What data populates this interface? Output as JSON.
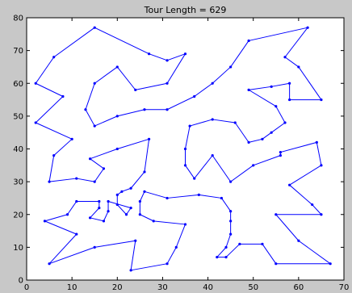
{
  "chart_data": {
    "type": "line",
    "title": "Tour Length = 629",
    "xlabel": "",
    "ylabel": "",
    "xlim": [
      0,
      70
    ],
    "ylim": [
      0,
      80
    ],
    "x_ticks": [
      0,
      10,
      20,
      30,
      40,
      50,
      60,
      70
    ],
    "y_ticks": [
      0,
      10,
      20,
      30,
      40,
      50,
      60,
      70,
      80
    ],
    "grid": false,
    "closed": true,
    "series_color": "#0000ff",
    "background": "#ffffff",
    "figure_background": "#c8c8c8",
    "tour": [
      [
        15,
        77
      ],
      [
        27,
        69
      ],
      [
        31,
        67
      ],
      [
        35,
        69
      ],
      [
        31,
        60
      ],
      [
        24,
        58
      ],
      [
        20,
        65
      ],
      [
        15,
        60
      ],
      [
        13,
        52
      ],
      [
        15,
        47
      ],
      [
        20,
        50
      ],
      [
        26,
        52
      ],
      [
        31,
        52
      ],
      [
        37,
        56
      ],
      [
        41,
        60
      ],
      [
        45,
        65
      ],
      [
        49,
        73
      ],
      [
        62,
        77
      ],
      [
        57,
        68
      ],
      [
        60,
        65
      ],
      [
        65,
        55
      ],
      [
        58,
        55
      ],
      [
        58,
        60
      ],
      [
        54,
        59
      ],
      [
        49,
        58
      ],
      [
        55,
        53
      ],
      [
        57,
        48
      ],
      [
        54,
        45
      ],
      [
        52,
        43
      ],
      [
        49,
        42
      ],
      [
        46,
        48
      ],
      [
        41,
        49
      ],
      [
        36,
        47
      ],
      [
        35,
        40
      ],
      [
        35,
        35
      ],
      [
        37,
        31
      ],
      [
        41,
        38
      ],
      [
        45,
        30
      ],
      [
        50,
        35
      ],
      [
        56,
        38
      ],
      [
        56,
        39
      ],
      [
        64,
        42
      ],
      [
        65,
        35
      ],
      [
        58,
        29
      ],
      [
        63,
        23
      ],
      [
        65,
        20
      ],
      [
        55,
        20
      ],
      [
        60,
        12
      ],
      [
        67,
        5
      ],
      [
        55,
        5
      ],
      [
        52,
        11
      ],
      [
        47,
        11
      ],
      [
        44,
        7
      ],
      [
        42,
        7
      ],
      [
        44,
        10
      ],
      [
        45,
        14
      ],
      [
        45,
        18
      ],
      [
        45,
        21
      ],
      [
        43,
        25
      ],
      [
        38,
        26
      ],
      [
        31,
        25
      ],
      [
        26,
        27
      ],
      [
        25,
        24
      ],
      [
        25,
        20
      ],
      [
        28,
        18
      ],
      [
        35,
        17
      ],
      [
        33,
        10
      ],
      [
        31,
        5
      ],
      [
        23,
        3
      ],
      [
        24,
        12
      ],
      [
        15,
        10
      ],
      [
        5,
        5
      ],
      [
        11,
        14
      ],
      [
        4,
        18
      ],
      [
        9,
        20
      ],
      [
        11,
        24
      ],
      [
        16,
        24
      ],
      [
        16,
        22
      ],
      [
        14,
        19
      ],
      [
        17,
        18
      ],
      [
        18,
        21
      ],
      [
        18,
        24
      ],
      [
        23,
        22
      ],
      [
        22,
        20
      ],
      [
        20,
        23
      ],
      [
        20,
        26
      ],
      [
        21,
        27
      ],
      [
        23,
        28
      ],
      [
        26,
        33
      ],
      [
        27,
        43
      ],
      [
        20,
        40
      ],
      [
        14,
        37
      ],
      [
        17,
        34
      ],
      [
        15,
        30
      ],
      [
        11,
        31
      ],
      [
        5,
        30
      ],
      [
        6,
        38
      ],
      [
        10,
        43
      ],
      [
        2,
        48
      ],
      [
        8,
        56
      ],
      [
        2,
        60
      ],
      [
        6,
        68
      ]
    ]
  }
}
